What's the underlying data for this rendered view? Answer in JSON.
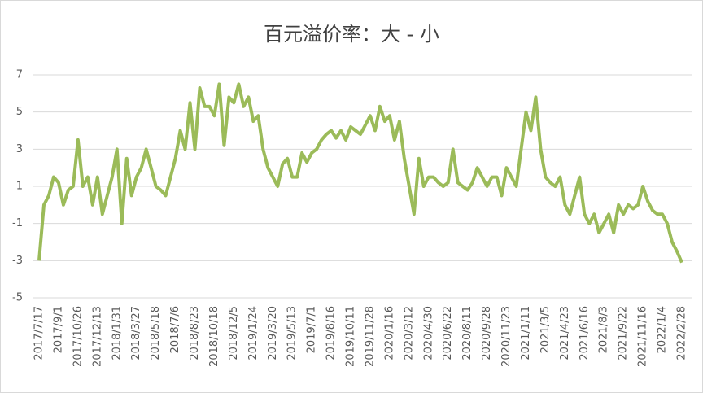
{
  "chart_data": {
    "type": "line",
    "title": "百元溢价率：大 - 小",
    "categories": [
      "2017/7/17",
      null,
      null,
      null,
      "2017/9/1",
      null,
      null,
      null,
      "2017/10/26",
      null,
      null,
      null,
      "2017/12/13",
      null,
      null,
      null,
      "2018/1/31",
      null,
      null,
      null,
      "2018/3/27",
      null,
      null,
      null,
      "2018/5/18",
      null,
      null,
      null,
      "2018/7/6",
      null,
      null,
      null,
      "2018/8/23",
      null,
      null,
      null,
      "2018/10/18",
      null,
      null,
      null,
      "2018/12/5",
      null,
      null,
      null,
      "2019/1/24",
      null,
      null,
      null,
      "2019/3/20",
      null,
      null,
      null,
      "2019/5/13",
      null,
      null,
      null,
      "2019/7/1",
      null,
      null,
      null,
      "2019/8/16",
      null,
      null,
      null,
      "2019/10/11",
      null,
      null,
      null,
      "2019/11/28",
      null,
      null,
      null,
      "2020/1/16",
      null,
      null,
      null,
      "2020/3/12",
      null,
      null,
      null,
      "2020/4/30",
      null,
      null,
      null,
      "2020/6/22",
      null,
      null,
      null,
      "2020/8/11",
      null,
      null,
      null,
      "2020/9/28",
      null,
      null,
      null,
      "2020/11/23",
      null,
      null,
      null,
      "2021/1/11",
      null,
      null,
      null,
      "2021/3/5",
      null,
      null,
      null,
      "2021/4/23",
      null,
      null,
      null,
      "2021/6/16",
      null,
      null,
      null,
      "2021/8/3",
      null,
      null,
      null,
      "2021/9/22",
      null,
      null,
      null,
      "2021/11/16",
      null,
      null,
      null,
      "2022/1/4",
      null,
      null,
      null,
      "2022/2/28"
    ],
    "series": [
      {
        "name": "大 - 小",
        "color": "#9bbb59",
        "values": [
          -3,
          0,
          0.5,
          1.5,
          1.2,
          0,
          0.8,
          1,
          3.5,
          1,
          1.5,
          0,
          1.5,
          -0.5,
          0.5,
          1.5,
          3,
          -1,
          2.5,
          0.5,
          1.5,
          2,
          3,
          2,
          1,
          0.8,
          0.5,
          1.5,
          2.5,
          4,
          3,
          5.5,
          3,
          6.3,
          5.3,
          5.3,
          4.8,
          6.5,
          3.2,
          5.8,
          5.5,
          6.5,
          5.3,
          5.8,
          4.5,
          4.8,
          3,
          2,
          1.5,
          1,
          2.2,
          2.5,
          1.5,
          1.5,
          2.8,
          2.3,
          2.8,
          3,
          3.5,
          3.8,
          4,
          3.6,
          4,
          3.5,
          4.2,
          4,
          3.8,
          4.3,
          4.8,
          4,
          5.3,
          4.5,
          4.8,
          3.5,
          4.5,
          2.5,
          1,
          -0.5,
          2.5,
          1,
          1.5,
          1.5,
          1.2,
          1,
          1.2,
          3,
          1.2,
          1,
          0.8,
          1.2,
          2,
          1.5,
          1,
          1.5,
          1.5,
          0.5,
          2,
          1.5,
          1,
          3,
          5,
          4,
          5.8,
          3,
          1.5,
          1.2,
          1,
          1.5,
          0,
          -0.5,
          0.5,
          1.5,
          -0.5,
          -1,
          -0.5,
          -1.5,
          -1,
          -0.5,
          -1.5,
          0,
          -0.5,
          0,
          -0.2,
          0,
          1,
          0.2,
          -0.3,
          -0.5,
          -0.5,
          -1,
          -2,
          -2.5,
          -3.1
        ]
      }
    ],
    "ylim": [
      -5,
      7
    ],
    "yticks": [
      -5,
      -3,
      -1,
      1,
      3,
      5,
      7
    ],
    "grid": true
  }
}
